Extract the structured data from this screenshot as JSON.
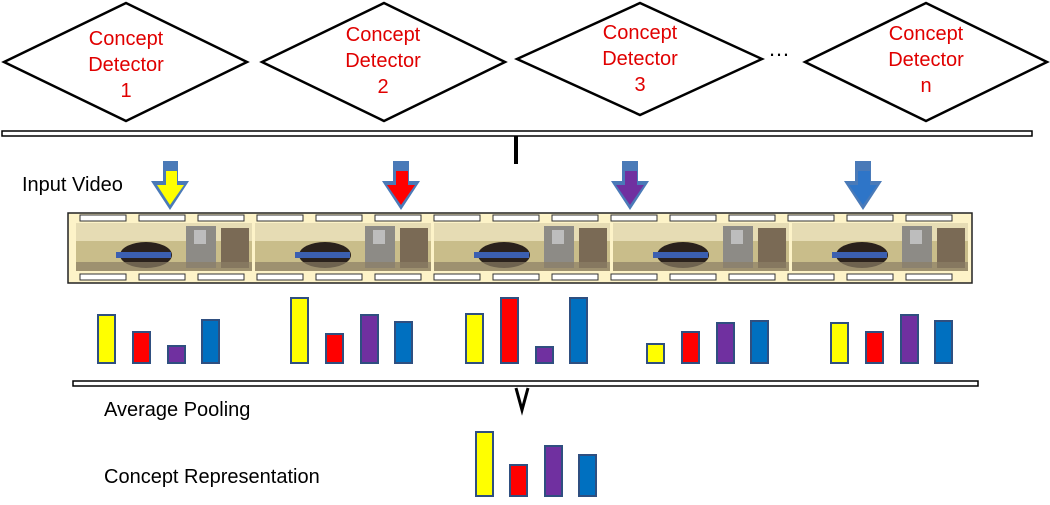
{
  "detectors": [
    {
      "lines": [
        "Concept",
        "Detector",
        "1"
      ]
    },
    {
      "lines": [
        "Concept",
        "Detector",
        "2"
      ]
    },
    {
      "lines": [
        "Concept",
        "Detector",
        "3"
      ]
    },
    {
      "lines": [
        "Concept",
        "Detector",
        "n"
      ]
    }
  ],
  "ellipsis": "…",
  "labels": {
    "input_video": "Input Video",
    "average_pooling": "Average Pooling",
    "concept_representation": "Concept Representation"
  },
  "arrow_colors": [
    "#ffff00",
    "#ff0000",
    "#7030a0",
    "#0070c0"
  ],
  "colors": {
    "yellow": "#ffff00",
    "red": "#ff0000",
    "purple": "#7030a0",
    "blue": "#0070c0",
    "detector_text": "#e00000",
    "film": "#fdf3c8"
  },
  "chart_data": {
    "type": "bar",
    "series_colors": [
      "#ffff00",
      "#ff0000",
      "#7030a0",
      "#0070c0"
    ],
    "frame_groups": [
      {
        "values": [
          48,
          31,
          17,
          43
        ]
      },
      {
        "values": [
          65,
          29,
          48,
          41
        ]
      },
      {
        "values": [
          49,
          65,
          16,
          65
        ]
      },
      {
        "values": [
          19,
          31,
          40,
          42
        ]
      },
      {
        "values": [
          40,
          31,
          48,
          42
        ]
      }
    ],
    "pooled": {
      "values": [
        64,
        31,
        50,
        41
      ]
    }
  }
}
